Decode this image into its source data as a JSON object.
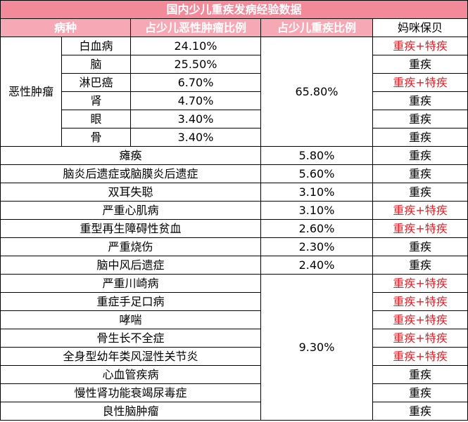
{
  "title": "国内少儿重疾发病经验数据",
  "headers": {
    "disease": "病种",
    "malignant_ratio": "占少儿恶性肿瘤比例",
    "critical_ratio": "占少儿重疾比例",
    "coverage": "妈咪保贝"
  },
  "malignant": {
    "group_label": "恶性肿瘤",
    "group_ratio": "65.80%",
    "rows": [
      {
        "name": "白血病",
        "ratio": "24.10%",
        "coverage": "重疾+特疾",
        "highlight": true
      },
      {
        "name": "脑",
        "ratio": "25.50%",
        "coverage": "重疾",
        "highlight": false
      },
      {
        "name": "淋巴癌",
        "ratio": "6.70%",
        "coverage": "重疾+特疾",
        "highlight": true
      },
      {
        "name": "肾",
        "ratio": "4.70%",
        "coverage": "重疾",
        "highlight": false
      },
      {
        "name": "眼",
        "ratio": "3.40%",
        "coverage": "重疾",
        "highlight": false
      },
      {
        "name": "骨",
        "ratio": "3.40%",
        "coverage": "重疾",
        "highlight": false
      }
    ]
  },
  "others": [
    {
      "name": "瘫痪",
      "ratio": "5.80%",
      "coverage": "重疾",
      "highlight": false
    },
    {
      "name": "脑炎后遗症或脑膜炎后遗症",
      "ratio": "5.60%",
      "coverage": "重疾",
      "highlight": false
    },
    {
      "name": "双耳失聪",
      "ratio": "3.10%",
      "coverage": "重疾",
      "highlight": false
    },
    {
      "name": "严重心肌病",
      "ratio": "3.10%",
      "coverage": "重疾+特疾",
      "highlight": true
    },
    {
      "name": "重型再生障碍性贫血",
      "ratio": "2.60%",
      "coverage": "重疾+特疾",
      "highlight": true
    },
    {
      "name": "严重烧伤",
      "ratio": "2.30%",
      "coverage": "重疾",
      "highlight": false
    },
    {
      "name": "脑中风后遗症",
      "ratio": "2.40%",
      "coverage": "重疾",
      "highlight": false
    }
  ],
  "grouped": {
    "ratio": "9.30%",
    "rows": [
      {
        "name": "严重川崎病",
        "coverage": "重疾+特疾",
        "highlight": true
      },
      {
        "name": "重症手足口病",
        "coverage": "重疾+特疾",
        "highlight": true
      },
      {
        "name": "哮喘",
        "coverage": "重疾+特疾",
        "highlight": true
      },
      {
        "name": "骨生长不全症",
        "coverage": "重疾+特疾",
        "highlight": true
      },
      {
        "name": "全身型幼年类风湿性关节炎",
        "coverage": "重疾+特疾",
        "highlight": true
      },
      {
        "name": "心血管疾病",
        "coverage": "重疾",
        "highlight": false
      },
      {
        "name": "慢性肾功能衰竭尿毒症",
        "coverage": "重疾",
        "highlight": false
      },
      {
        "name": "良性脑肿瘤",
        "coverage": "重疾",
        "highlight": false
      }
    ]
  },
  "colors": {
    "title_bg": "#f28a9a",
    "header_bg": "#f6a9b4",
    "highlight_text": "#e51c23"
  }
}
